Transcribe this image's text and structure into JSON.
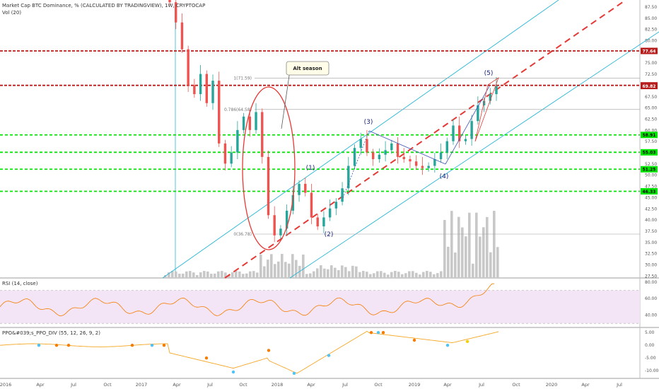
{
  "header": {
    "title": "Market Cap BTC Dominance, % (CALCULATED BY TRADINGVIEW), 1W, CRYPTOCAP",
    "volume_label": "Vol (20)"
  },
  "colors": {
    "up": "#26a69a",
    "down": "#ef5350",
    "volume": "#c8c8c8",
    "horizontal_red": "#b71c1c",
    "horizontal_green": "#00e600",
    "channel": "#29b6d6",
    "midline": "#e53935",
    "rsi_line": "#f57c00",
    "rsi_band": "#f3e5f5",
    "ppo_line": "#f5a623"
  },
  "chart_data": [
    {
      "type": "candlestick",
      "title": "Market Cap BTC Dominance, % (CALCULATED BY TRADINGVIEW), 1W, CRYPTOCAP",
      "x_ticks": [
        "2016",
        "Apr",
        "Jul",
        "Oct",
        "2017",
        "Apr",
        "Jul",
        "Oct",
        "2018",
        "Apr",
        "Jul",
        "Oct",
        "2019",
        "Apr",
        "Jul",
        "Oct",
        "2020",
        "Apr",
        "Jul"
      ],
      "y_ticks": [
        "87.50",
        "85.00",
        "82.50",
        "80.00",
        "77.50",
        "75.00",
        "72.50",
        "70.00",
        "67.50",
        "65.00",
        "62.50",
        "60.00",
        "57.50",
        "55.00",
        "52.50",
        "50.00",
        "47.50",
        "45.00",
        "42.50",
        "40.00",
        "37.50",
        "35.00",
        "32.50",
        "30.00",
        "27.50"
      ],
      "ylim": [
        27.0,
        89.0
      ],
      "price_series": [
        {
          "date": "2017-03",
          "close": 88.5
        },
        {
          "date": "2017-04",
          "close": 84.0
        },
        {
          "date": "2017-05",
          "close": 78.0
        },
        {
          "date": "2017-05b",
          "close": 70.0
        },
        {
          "date": "2017-06",
          "close": 68.0
        },
        {
          "date": "2017-06b",
          "close": 72.5
        },
        {
          "date": "2017-07",
          "close": 66.0
        },
        {
          "date": "2017-08",
          "close": 71.0
        },
        {
          "date": "2017-08b",
          "close": 57.0
        },
        {
          "date": "2017-09",
          "close": 52.5
        },
        {
          "date": "2017-10",
          "close": 55.0
        },
        {
          "date": "2017-10b",
          "close": 60.0
        },
        {
          "date": "2017-11",
          "close": 63.0
        },
        {
          "date": "2017-11b",
          "close": 60.0
        },
        {
          "date": "2017-12",
          "close": 64.0
        },
        {
          "date": "2017-12b",
          "close": 54.0
        },
        {
          "date": "2018-01",
          "close": 41.0
        },
        {
          "date": "2018-01b",
          "close": 36.5
        },
        {
          "date": "2018-02",
          "close": 38.0
        },
        {
          "date": "2018-02b",
          "close": 42.0
        },
        {
          "date": "2018-03",
          "close": 45.5
        },
        {
          "date": "2018-04",
          "close": 48.0
        },
        {
          "date": "2018-04b",
          "close": 46.0
        },
        {
          "date": "2018-05",
          "close": 40.5
        },
        {
          "date": "2018-05b",
          "close": 38.5
        },
        {
          "date": "2018-06",
          "close": 40.5
        },
        {
          "date": "2018-06b",
          "close": 42.5
        },
        {
          "date": "2018-07",
          "close": 44.0
        },
        {
          "date": "2018-07b",
          "close": 47.0
        },
        {
          "date": "2018-08",
          "close": 52.0
        },
        {
          "date": "2018-08b",
          "close": 56.0
        },
        {
          "date": "2018-09",
          "close": 58.0
        },
        {
          "date": "2018-09b",
          "close": 55.0
        },
        {
          "date": "2018-10",
          "close": 53.5
        },
        {
          "date": "2018-10b",
          "close": 54.5
        },
        {
          "date": "2018-11",
          "close": 55.5
        },
        {
          "date": "2018-11b",
          "close": 57.0
        },
        {
          "date": "2018-12",
          "close": 54.0
        },
        {
          "date": "2018-12b",
          "close": 53.5
        },
        {
          "date": "2019-01",
          "close": 53.0
        },
        {
          "date": "2019-01b",
          "close": 52.0
        },
        {
          "date": "2019-02",
          "close": 51.5
        },
        {
          "date": "2019-03",
          "close": 52.0
        },
        {
          "date": "2019-03b",
          "close": 53.5
        },
        {
          "date": "2019-04",
          "close": 55.0
        },
        {
          "date": "2019-04b",
          "close": 57.5
        },
        {
          "date": "2019-05",
          "close": 61.0
        },
        {
          "date": "2019-05b",
          "close": 57.5
        },
        {
          "date": "2019-06",
          "close": 58.0
        },
        {
          "date": "2019-06b",
          "close": 62.0
        },
        {
          "date": "2019-07",
          "close": 65.5
        },
        {
          "date": "2019-07b",
          "close": 66.5
        },
        {
          "date": "2019-08",
          "close": 68.0
        },
        {
          "date": "2019-08b",
          "close": 69.8
        }
      ],
      "horizontal_levels": [
        {
          "label": "77.64",
          "value": 77.64,
          "style": "red-dashed"
        },
        {
          "label": "69.96",
          "value": 69.96,
          "style": "red-dashed"
        },
        {
          "label": "58.91",
          "value": 58.91,
          "style": "green-dashed"
        },
        {
          "label": "55.03",
          "value": 55.03,
          "style": "green-dashed"
        },
        {
          "label": "51.25",
          "value": 51.25,
          "style": "green-dashed"
        },
        {
          "label": "46.33",
          "value": 46.33,
          "style": "green-dashed"
        }
      ],
      "last_price_label": "69.82",
      "last_price": 69.82,
      "fib_labels": [
        "1(71.59)",
        "0.786(64.58)",
        "0(36.78)"
      ],
      "wave_labels": [
        "(1)",
        "(2)",
        "(3)",
        "(4)",
        "(5)"
      ],
      "annotation": "Alt season"
    },
    {
      "type": "line",
      "title": "RSI (14, close)",
      "y_ticks": [
        "80.00",
        "60.00",
        "40.00"
      ],
      "ylim": [
        25,
        85
      ],
      "band": [
        30,
        70
      ]
    },
    {
      "type": "line",
      "title": "PPO&#039;s_PPO_DIV (55, 12, 26, 9, 2)",
      "y_ticks": [
        "5.00",
        "0.00",
        "-5.00",
        "-10.00"
      ],
      "ylim": [
        -13,
        7
      ]
    }
  ]
}
